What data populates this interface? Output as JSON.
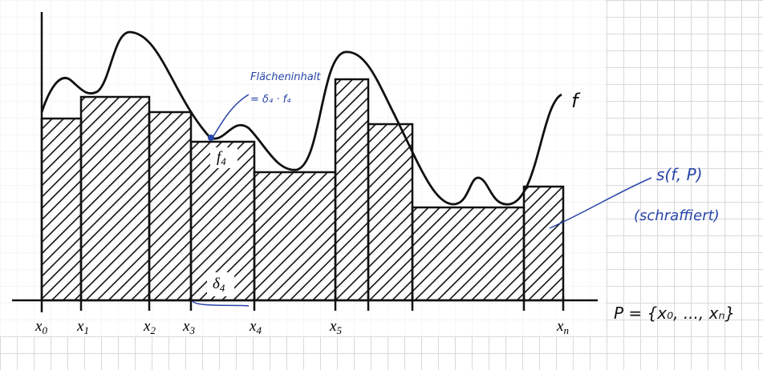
{
  "axis_labels": [
    {
      "symbol": "x",
      "index": "0"
    },
    {
      "symbol": "x",
      "index": "1"
    },
    {
      "symbol": "x",
      "index": "2"
    },
    {
      "symbol": "x",
      "index": "3"
    },
    {
      "symbol": "x",
      "index": "4"
    },
    {
      "symbol": "x",
      "index": "5"
    },
    {
      "symbol": "x",
      "index": "n"
    }
  ],
  "height_label": {
    "symbol": "f",
    "index": "4"
  },
  "width_label": {
    "symbol": "δ",
    "index": "4"
  },
  "curve_label": "f",
  "area_note": [
    "Flächeninhalt",
    "= δ₄ · f₄"
  ],
  "sum_note": [
    "s(f, P)",
    "(schraffiert)"
  ],
  "partition_note": "P = {x₀, ..., xₙ}"
}
